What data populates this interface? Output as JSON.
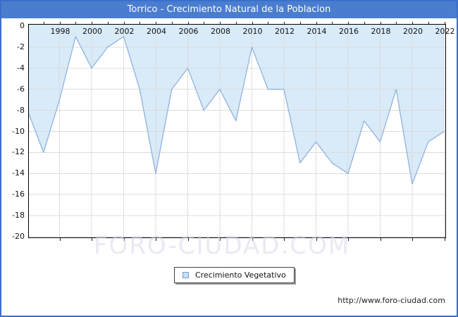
{
  "title": "Torrico - Crecimiento Natural de la Poblacion",
  "legend": {
    "label": "Crecimiento Vegetativo"
  },
  "watermark": "FORO-CIUDAD.COM",
  "source_url": "http://www.foro-ciudad.com",
  "colors": {
    "titlebar": "#4a7dce",
    "frame_border": "#3a70cc",
    "line": "#8fb3de",
    "area_fill": "#d9eaf8",
    "grid": "#dcdcdc",
    "legend_marker_fill": "#c7def2",
    "legend_marker_border": "#6d9ecf"
  },
  "chart_data": {
    "type": "area",
    "title": "Torrico - Crecimiento Natural de la Poblacion",
    "series_name": "Crecimiento Vegetativo",
    "x": [
      1996,
      1997,
      1998,
      1999,
      2000,
      2001,
      2002,
      2003,
      2004,
      2005,
      2006,
      2007,
      2008,
      2009,
      2010,
      2011,
      2012,
      2013,
      2014,
      2015,
      2016,
      2017,
      2018,
      2019,
      2020,
      2021,
      2022
    ],
    "values": [
      -8,
      -12,
      -7,
      -1,
      -4,
      -2,
      -1,
      -6,
      -14,
      -6,
      -4,
      -8,
      -6,
      -9,
      -2,
      -6,
      -6,
      -13,
      -11,
      -13,
      -14,
      -9,
      -11,
      -6,
      -15,
      -11,
      -10
    ],
    "xlabel": "",
    "ylabel": "",
    "ylim": [
      -20,
      0
    ],
    "x_tick_labels": [
      "1998",
      "2000",
      "2002",
      "2004",
      "2006",
      "2008",
      "2010",
      "2012",
      "2014",
      "2016",
      "2018",
      "2020",
      "2022"
    ],
    "y_tick_labels": [
      "0",
      "-2",
      "-4",
      "-6",
      "-8",
      "-10",
      "-12",
      "-14",
      "-16",
      "-18",
      "-20"
    ],
    "grid": true,
    "legend_position": "bottom-center",
    "fill_direction": "between line and top (y=0)"
  }
}
